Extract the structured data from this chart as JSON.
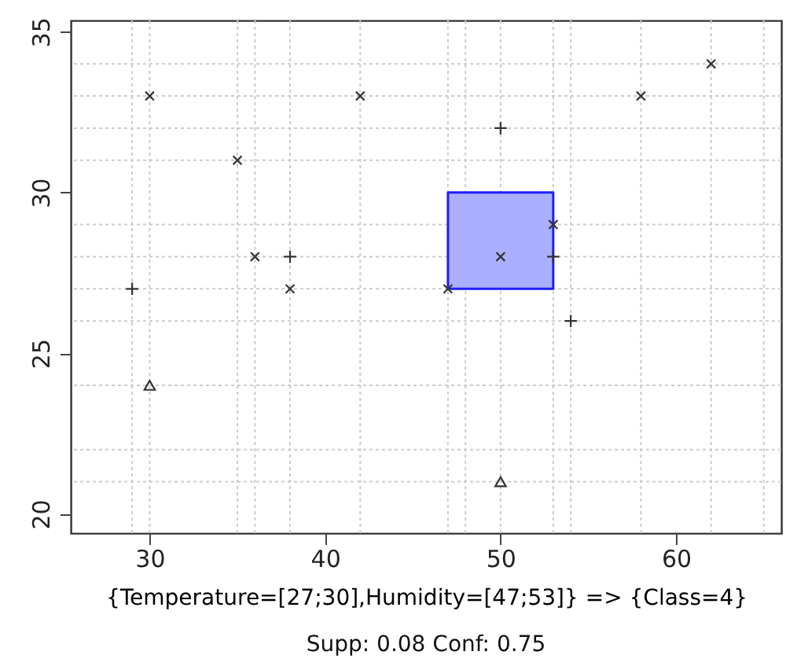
{
  "chart_data": {
    "type": "scatter",
    "xlabel": "{Temperature=[27;30],Humidity=[47;53]} => {Class=4}",
    "annotations": [
      "Supp: 0.08  Conf: 0.75"
    ],
    "xlim": [
      25.5,
      66
    ],
    "ylim": [
      19.4,
      35.35
    ],
    "xticks": [
      30,
      40,
      50,
      60
    ],
    "yticks": [
      20,
      25,
      30,
      35
    ],
    "grid": false,
    "series": [
      {
        "type": "area",
        "x": [
          47,
          47,
          53,
          53,
          47
        ],
        "values": [
          27,
          30,
          30,
          27,
          27
        ],
        "color": "#aab0ff"
      },
      {
        "marker": "x",
        "color": "#333333",
        "x": [
          30,
          42,
          58,
          62,
          35,
          36,
          38,
          47,
          50,
          53
        ],
        "values": [
          33,
          33,
          33,
          34,
          31,
          28,
          27,
          27,
          28,
          29
        ]
      },
      {
        "marker": "cross",
        "color": "#333333",
        "x": [
          29,
          38,
          50,
          53,
          54
        ],
        "values": [
          27,
          28,
          32,
          28,
          26
        ]
      },
      {
        "marker": "triangle",
        "color": "#333333",
        "x": [
          30,
          50
        ],
        "values": [
          24,
          21
        ]
      }
    ],
    "ref_lines": [
      {
        "axis": "x",
        "value": 29,
        "color": "#cccccc",
        "line_style": "dotted"
      },
      {
        "axis": "x",
        "value": 30,
        "color": "#cccccc",
        "line_style": "dotted"
      },
      {
        "axis": "x",
        "value": 35,
        "color": "#cccccc",
        "line_style": "dotted"
      },
      {
        "axis": "x",
        "value": 36,
        "color": "#cccccc",
        "line_style": "dotted"
      },
      {
        "axis": "x",
        "value": 38,
        "color": "#cccccc",
        "line_style": "dotted"
      },
      {
        "axis": "x",
        "value": 42,
        "color": "#cccccc",
        "line_style": "dotted"
      },
      {
        "axis": "x",
        "value": 47,
        "color": "#cccccc",
        "line_style": "dotted"
      },
      {
        "axis": "x",
        "value": 48,
        "color": "#cccccc",
        "line_style": "dotted"
      },
      {
        "axis": "x",
        "value": 50,
        "color": "#cccccc",
        "line_style": "dotted"
      },
      {
        "axis": "x",
        "value": 53,
        "color": "#cccccc",
        "line_style": "dotted"
      },
      {
        "axis": "x",
        "value": 54,
        "color": "#cccccc",
        "line_style": "dotted"
      },
      {
        "axis": "x",
        "value": 58,
        "color": "#cccccc",
        "line_style": "dotted"
      },
      {
        "axis": "x",
        "value": 62,
        "color": "#cccccc",
        "line_style": "dotted"
      },
      {
        "axis": "x",
        "value": 65,
        "color": "#cccccc",
        "line_style": "dotted"
      },
      {
        "axis": "y",
        "value": 21,
        "color": "#cccccc",
        "line_style": "dotted"
      },
      {
        "axis": "y",
        "value": 22,
        "color": "#cccccc",
        "line_style": "dotted"
      },
      {
        "axis": "y",
        "value": 24,
        "color": "#cccccc",
        "line_style": "dotted"
      },
      {
        "axis": "y",
        "value": 26,
        "color": "#cccccc",
        "line_style": "dotted"
      },
      {
        "axis": "y",
        "value": 27,
        "color": "#cccccc",
        "line_style": "dotted"
      },
      {
        "axis": "y",
        "value": 28,
        "color": "#cccccc",
        "line_style": "dotted"
      },
      {
        "axis": "y",
        "value": 29,
        "color": "#cccccc",
        "line_style": "dotted"
      },
      {
        "axis": "y",
        "value": 31,
        "color": "#cccccc",
        "line_style": "dotted"
      },
      {
        "axis": "y",
        "value": 32,
        "color": "#cccccc",
        "line_style": "dotted"
      },
      {
        "axis": "y",
        "value": 33,
        "color": "#cccccc",
        "line_style": "dotted"
      },
      {
        "axis": "y",
        "value": 34,
        "color": "#cccccc",
        "line_style": "dotted"
      }
    ]
  }
}
